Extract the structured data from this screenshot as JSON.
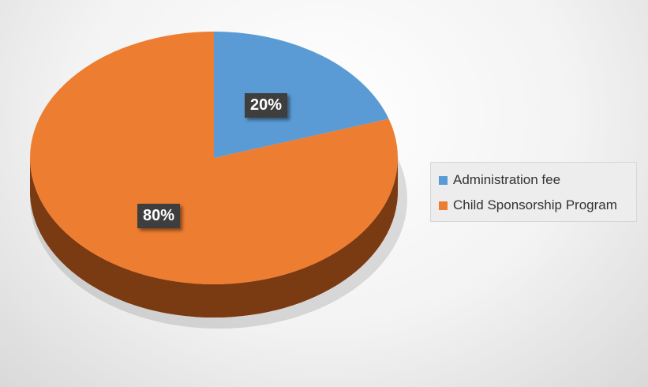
{
  "chart_data": {
    "type": "pie",
    "title": "",
    "categories": [
      "Administration fee",
      "Child Sponsorship Program"
    ],
    "values": [
      20,
      80
    ],
    "labels": [
      "20%",
      "80%"
    ],
    "colors": [
      "#5b9bd5",
      "#ed7d31"
    ],
    "side_colors": [
      "#3a6f9e",
      "#7a3a12"
    ],
    "legend_position": "right",
    "style": "3d"
  }
}
